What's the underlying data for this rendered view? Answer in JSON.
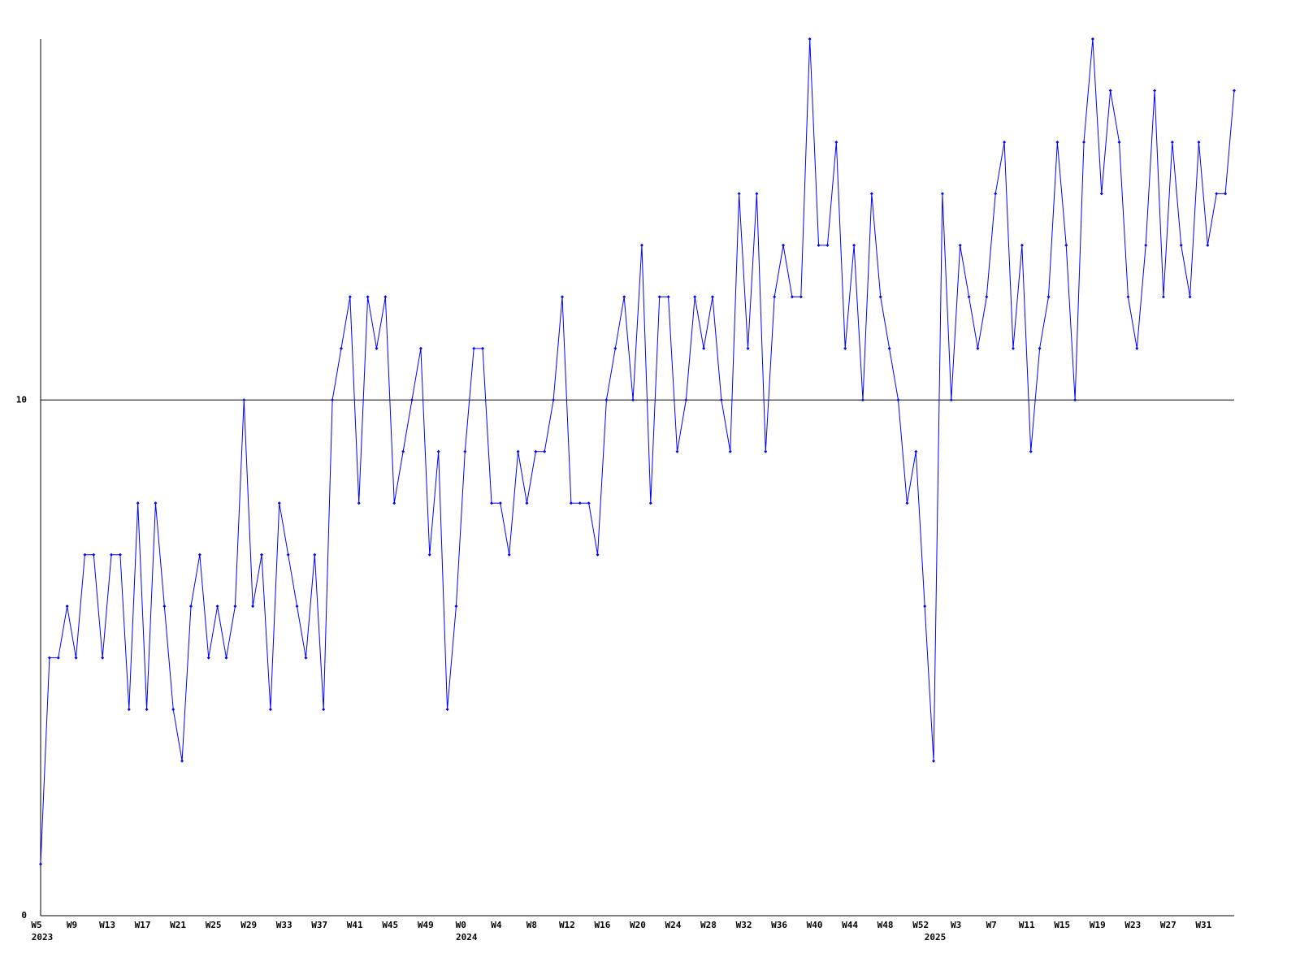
{
  "chart_data": {
    "type": "line",
    "categories": [
      "W5",
      null,
      null,
      null,
      "W9",
      null,
      null,
      null,
      "W13",
      null,
      null,
      null,
      "W17",
      null,
      null,
      null,
      "W21",
      null,
      null,
      null,
      "W25",
      null,
      null,
      null,
      "W29",
      null,
      null,
      null,
      "W33",
      null,
      null,
      null,
      "W37",
      null,
      null,
      null,
      "W41",
      null,
      null,
      null,
      "W45",
      null,
      null,
      null,
      "W49",
      null,
      null,
      null,
      "W0",
      null,
      null,
      null,
      "W4",
      null,
      null,
      null,
      "W8",
      null,
      null,
      null,
      "W12",
      null,
      null,
      null,
      "W16",
      null,
      null,
      null,
      "W20",
      null,
      null,
      null,
      "W24",
      null,
      null,
      null,
      "W28",
      null,
      null,
      null,
      "W32",
      null,
      null,
      null,
      "W36",
      null,
      null,
      null,
      "W40",
      null,
      null,
      null,
      "W44",
      null,
      null,
      null,
      "W48",
      null,
      null,
      null,
      "W52",
      null,
      null,
      null,
      "W3",
      null,
      null,
      null,
      "W7",
      null,
      null,
      null,
      "W11",
      null,
      null,
      null,
      "W15",
      null,
      null,
      null,
      "W19",
      null,
      null,
      null,
      "W23",
      null,
      null,
      null,
      "W27",
      null,
      null,
      null,
      "W31",
      null,
      null,
      null
    ],
    "years": [
      "2023",
      null,
      null,
      null,
      null,
      null,
      null,
      null,
      null,
      null,
      null,
      null,
      null,
      null,
      null,
      null,
      null,
      null,
      null,
      null,
      null,
      null,
      null,
      null,
      null,
      null,
      null,
      null,
      null,
      null,
      null,
      null,
      null,
      null,
      null,
      null,
      null,
      null,
      null,
      null,
      null,
      null,
      null,
      null,
      null,
      null,
      null,
      null,
      "2024",
      null,
      null,
      null,
      null,
      null,
      null,
      null,
      null,
      null,
      null,
      null,
      null,
      null,
      null,
      null,
      null,
      null,
      null,
      null,
      null,
      null,
      null,
      null,
      null,
      null,
      null,
      null,
      null,
      null,
      null,
      null,
      null,
      null,
      null,
      null,
      null,
      null,
      null,
      null,
      null,
      null,
      null,
      null,
      null,
      null,
      null,
      null,
      null,
      null,
      null,
      null,
      null,
      "2025",
      null,
      null,
      null,
      null,
      null,
      null,
      null,
      null,
      null,
      null,
      null,
      null,
      null,
      null,
      null,
      null,
      null,
      null,
      null,
      null,
      null,
      null,
      null,
      null,
      null,
      null,
      null,
      null,
      null,
      null,
      null,
      null,
      null
    ],
    "series": [
      {
        "color": "#0000ff",
        "values": [
          1,
          5,
          5,
          6,
          5,
          7,
          7,
          5,
          7,
          7,
          4,
          8,
          4,
          8,
          6,
          4,
          3,
          6,
          7,
          5,
          6,
          5,
          6,
          10,
          6,
          7,
          4,
          8,
          7,
          6,
          5,
          7,
          4,
          10,
          11,
          12,
          8,
          12,
          11,
          12,
          8,
          9,
          10,
          11,
          7,
          9,
          4,
          6,
          9,
          11,
          11,
          8,
          8,
          7,
          9,
          8,
          9,
          9,
          10,
          12,
          8,
          8,
          8,
          7,
          10,
          11,
          12,
          10,
          13,
          8,
          12,
          12,
          9,
          10,
          12,
          11,
          12,
          10,
          9,
          14,
          11,
          14,
          9,
          12,
          13,
          12,
          12,
          17,
          13,
          13,
          15,
          11,
          13,
          10,
          14,
          12,
          11,
          10,
          8,
          9,
          6,
          3,
          14,
          10,
          13,
          12,
          11,
          12,
          14,
          15,
          11,
          13,
          9,
          11,
          12,
          15,
          13,
          10,
          15,
          17,
          14,
          16,
          15,
          12,
          11,
          13,
          16,
          12,
          15,
          13,
          12,
          15,
          13,
          14,
          14,
          16
        ]
      }
    ],
    "ylim": [
      0,
      17
    ],
    "yticks": [
      0,
      10
    ],
    "grid": true
  }
}
